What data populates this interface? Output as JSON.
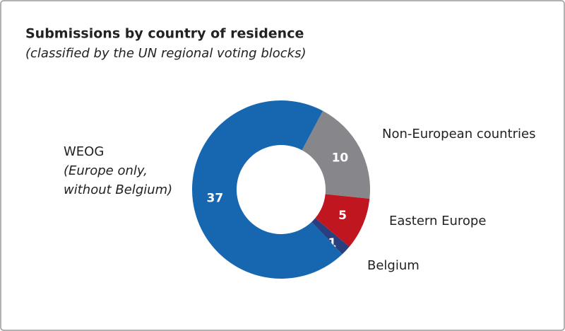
{
  "chart_data": {
    "type": "donut",
    "title": "Submissions by country of residence",
    "subtitle": "(classified by the UN regional voting blocks)",
    "categories": [
      "Non-European countries",
      "Eastern Europe",
      "Belgium",
      "WEOG"
    ],
    "sublabels": [
      null,
      null,
      null,
      [
        "(Europe only,",
        "without Belgium)"
      ]
    ],
    "values": [
      10,
      5,
      1,
      37
    ],
    "colors": [
      "#87868a",
      "#c0161f",
      "#2a3f7e",
      "#1767b0"
    ]
  }
}
